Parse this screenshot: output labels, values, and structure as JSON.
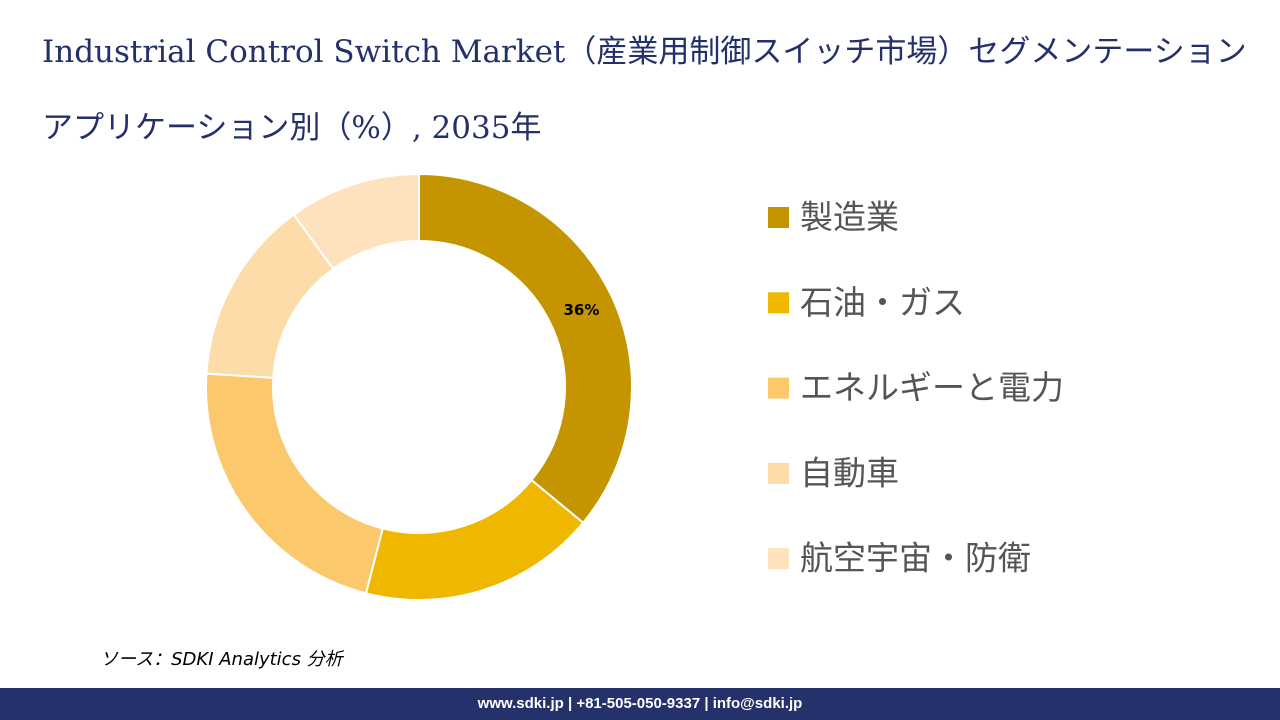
{
  "chart_data": {
    "type": "donut",
    "title": "Industrial Control Switch Market（産業用制御スイッチ市場）セグメンテーションアプリケーション別（%）, 2035年",
    "categories": [
      "製造業",
      "石油・ガス",
      "エネルギーと電力",
      "自動車",
      "航空宇宙・防衛"
    ],
    "values": [
      36,
      18,
      22,
      14,
      10
    ],
    "value_labels": [
      "36%",
      null,
      null,
      null,
      null
    ],
    "colors": [
      "#c49500",
      "#efb700",
      "#fbc96c",
      "#fddcaa",
      "#fde2bd"
    ],
    "legend": "right"
  },
  "source": "ソース：SDKI Analytics 分析",
  "footer": "www.sdki.jp | +81-505-050-9337 | info@sdki.jp"
}
